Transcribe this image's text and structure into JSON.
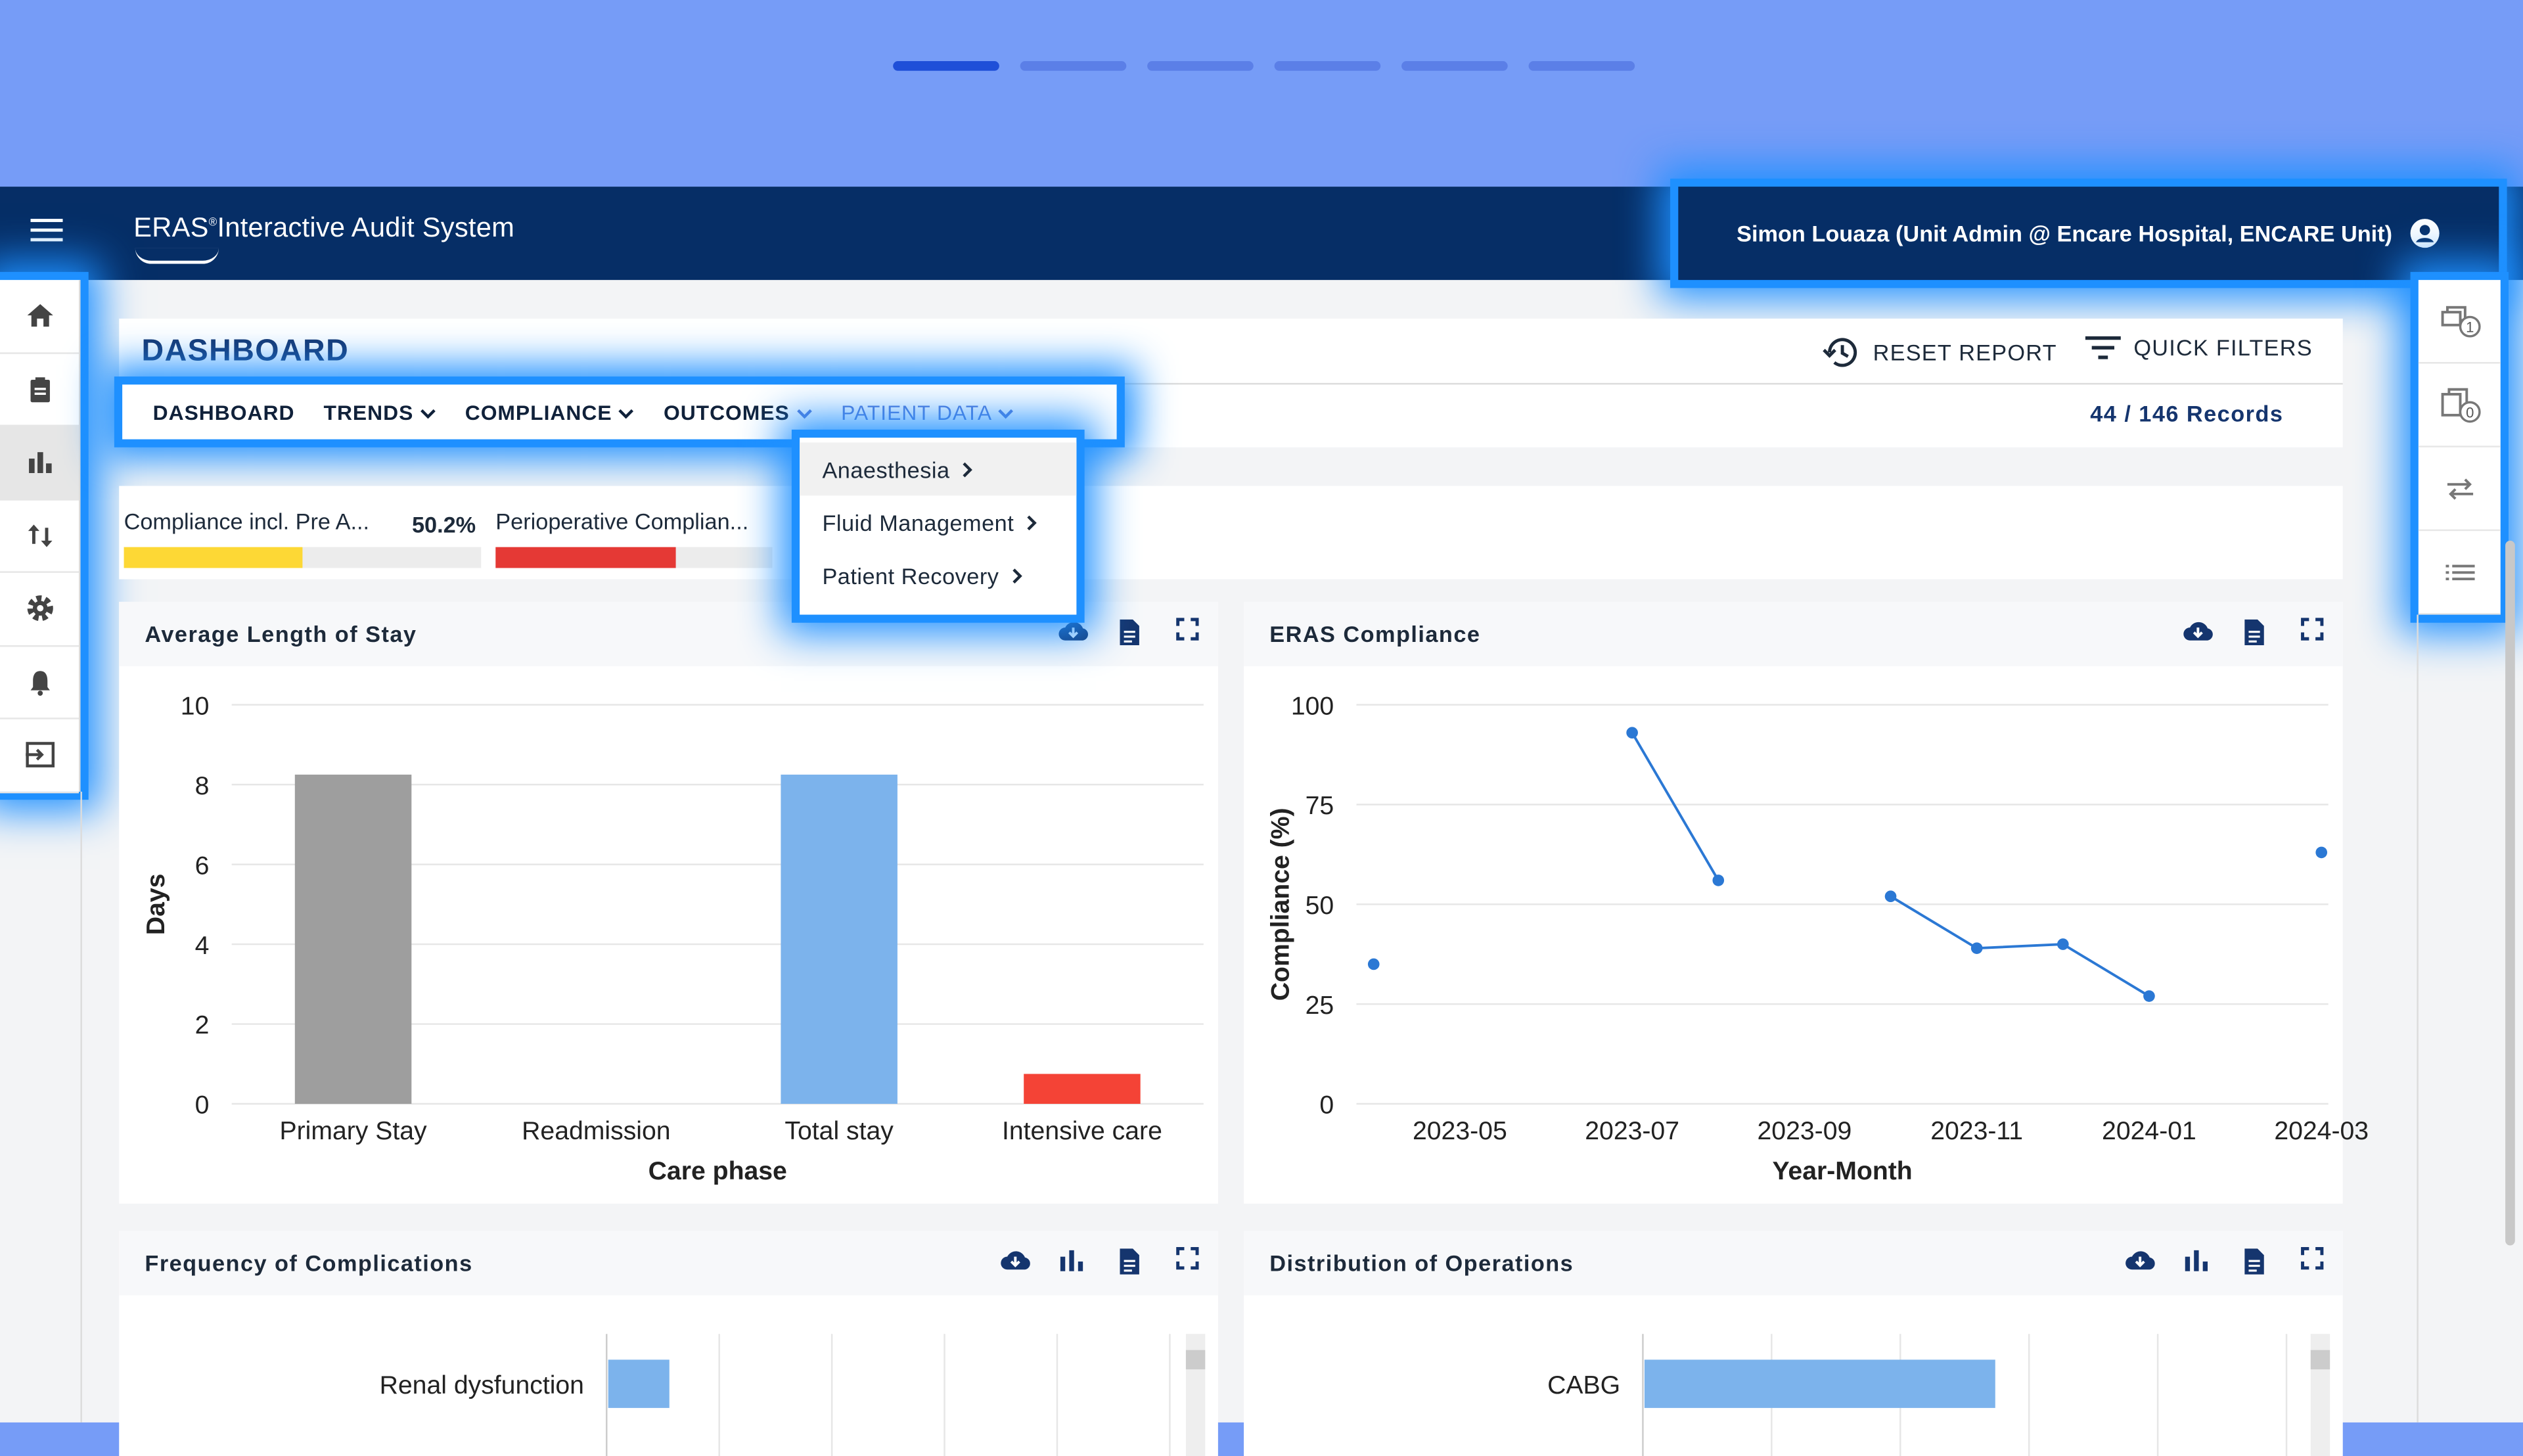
{
  "header": {
    "logo_text": "ERAS",
    "logo_reg": "®",
    "app_title": "Interactive Audit System",
    "user": "Simon Louaza (Unit Admin @ Encare Hospital, ENCARE Unit)"
  },
  "page": {
    "title": "DASHBOARD",
    "reset": "RESET REPORT",
    "quick_filters": "QUICK FILTERS",
    "records": "44 / 146 Records"
  },
  "menu": {
    "items": [
      "DASHBOARD",
      "TRENDS",
      "COMPLIANCE",
      "OUTCOMES",
      "PATIENT DATA"
    ]
  },
  "dropdown": {
    "items": [
      "Anaesthesia",
      "Fluid Management",
      "Patient Recovery"
    ]
  },
  "kpis": [
    {
      "label": "Compliance incl. Pre A...",
      "value": "50.2%",
      "fraction": 0.502,
      "color": "#fdd835"
    },
    {
      "label": "Perioperative Complian...",
      "fraction": 0.65,
      "color": "#e53935"
    }
  ],
  "right_badges": [
    "1",
    "0"
  ],
  "panels": {
    "alos": {
      "title": "Average Length of Stay"
    },
    "eras": {
      "title": "ERAS Compliance"
    },
    "freq": {
      "title": "Frequency of Complications"
    },
    "dist": {
      "title": "Distribution of Operations"
    }
  },
  "chart_data": [
    {
      "type": "bar",
      "title": "Average Length of Stay",
      "xlabel": "Care phase",
      "ylabel": "Days",
      "categories": [
        "Primary Stay",
        "Readmission",
        "Total stay",
        "Intensive care"
      ],
      "values": [
        8.25,
        0,
        8.25,
        0.75
      ],
      "colors": [
        "#9e9e9e",
        "#9e9e9e",
        "#7cb3ec",
        "#f44336"
      ],
      "ylim": [
        0,
        10
      ],
      "yticks": [
        0,
        2,
        4,
        6,
        8,
        10
      ],
      "grid": true
    },
    {
      "type": "line",
      "title": "ERAS Compliance",
      "xlabel": "Year-Month",
      "ylabel": "Compliance (%)",
      "x": [
        "2023-04",
        "2023-07",
        "2023-08",
        "2023-10",
        "2023-11",
        "2023-12",
        "2024-01",
        "2024-03"
      ],
      "values": [
        35,
        93,
        56,
        52,
        39,
        40,
        27,
        63
      ],
      "segments": [
        [
          1,
          2
        ],
        [
          3,
          4,
          5,
          6
        ]
      ],
      "xticks": [
        "2023-05",
        "2023-07",
        "2023-09",
        "2023-11",
        "2024-01",
        "2024-03"
      ],
      "ylim": [
        0,
        100
      ],
      "yticks": [
        0,
        25,
        50,
        75,
        100
      ],
      "color": "#2b78d4",
      "grid": true
    },
    {
      "type": "bar",
      "orientation": "horizontal",
      "title": "Frequency of Complications",
      "categories": [
        "Renal dysfunction"
      ],
      "color": "#7cb3ec"
    },
    {
      "type": "bar",
      "orientation": "horizontal",
      "title": "Distribution of Operations",
      "categories": [
        "CABG"
      ],
      "color": "#7cb3ec"
    }
  ]
}
